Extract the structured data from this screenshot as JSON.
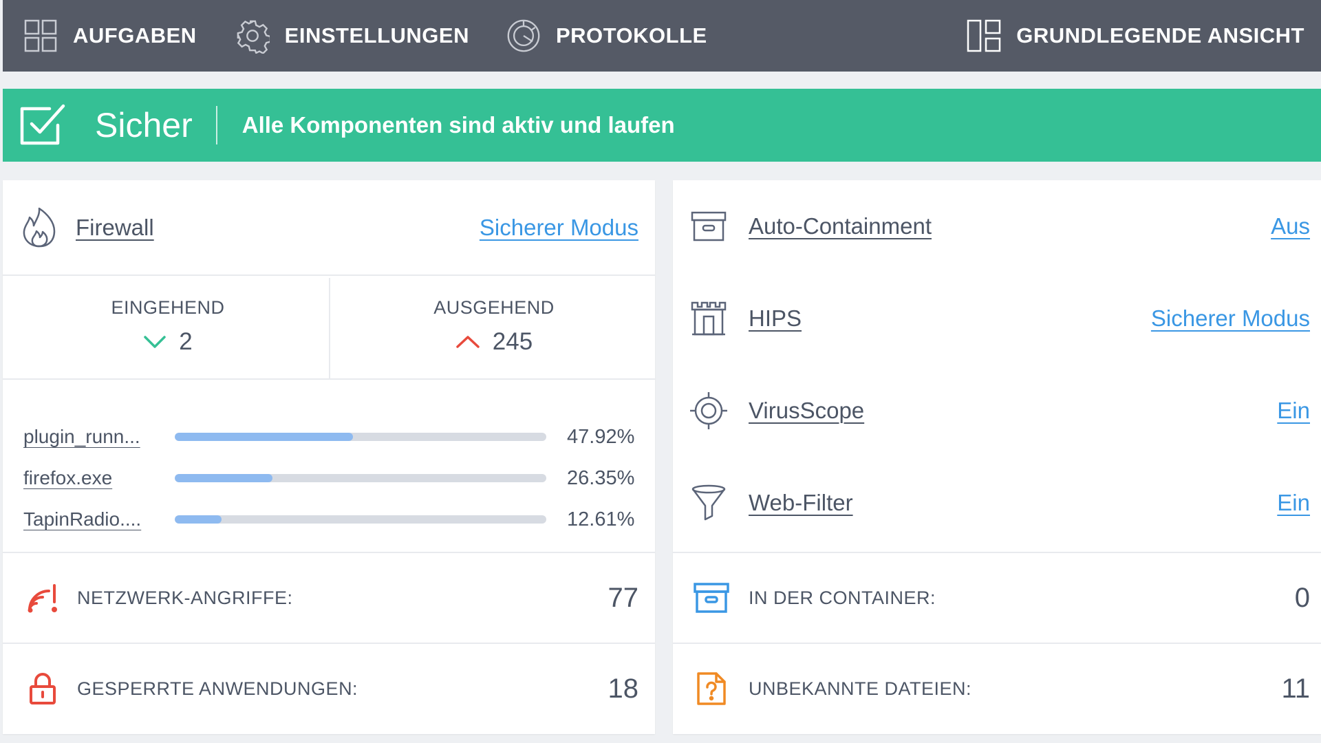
{
  "nav": {
    "tasks": {
      "label": "AUFGABEN",
      "icon": "grid-icon"
    },
    "settings": {
      "label": "EINSTELLUNGEN",
      "icon": "gear-icon"
    },
    "logs": {
      "label": "PROTOKOLLE",
      "icon": "pie-chart-icon"
    },
    "basic_view": {
      "label": "GRUNDLEGENDE ANSICHT",
      "icon": "layout-icon"
    }
  },
  "status": {
    "icon": "checkbox-icon",
    "title": "Sicher",
    "message": "Alle Komponenten sind aktiv und laufen",
    "color": "#35c095"
  },
  "firewall": {
    "title": "Firewall",
    "mode": "Sicherer Modus",
    "icon": "flame-icon",
    "incoming": {
      "label": "EINGEHEND",
      "value": "2",
      "color": "#35c095"
    },
    "outgoing": {
      "label": "AUSGEHEND",
      "value": "245",
      "color": "#e84a3c"
    },
    "processes": [
      {
        "name": "plugin_runn...",
        "percent": "47.92%",
        "fraction": 0.4792
      },
      {
        "name": "firefox.exe",
        "percent": "26.35%",
        "fraction": 0.2635
      },
      {
        "name": "TapinRadio....",
        "percent": "12.61%",
        "fraction": 0.1261
      }
    ]
  },
  "left_counters": {
    "network_attacks": {
      "label": "NETZWERK-ANGRIFFE:",
      "value": "77",
      "icon": "wifi-alert-icon",
      "color": "#e84a3c"
    },
    "blocked_apps": {
      "label": "GESPERRTE ANWENDUNGEN:",
      "value": "18",
      "icon": "lock-icon",
      "color": "#e84a3c"
    }
  },
  "features": [
    {
      "title": "Auto-Containment",
      "state": "Aus",
      "icon": "container-box-icon"
    },
    {
      "title": "HIPS",
      "state": "Sicherer Modus",
      "icon": "castle-icon"
    },
    {
      "title": "VirusScope",
      "state": "Ein",
      "icon": "target-icon"
    },
    {
      "title": "Web-Filter",
      "state": "Ein",
      "icon": "funnel-icon"
    }
  ],
  "right_counters": {
    "contained": {
      "label": "IN DER CONTAINER:",
      "value": "0",
      "icon": "container-box-icon",
      "color": "#3a97e4"
    },
    "unknown_files": {
      "label": "UNBEKANNTE DATEIEN:",
      "value": "11",
      "icon": "unknown-file-icon",
      "color": "#f08a24"
    }
  },
  "colors": {
    "link": "#3a97e4",
    "bar_fill": "#8ebaf0",
    "bar_track": "#d7dbe2",
    "topbar": "#555a66"
  }
}
